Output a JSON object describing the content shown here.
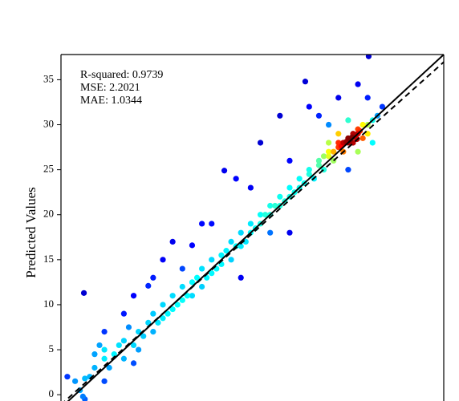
{
  "chart_data": {
    "type": "scatter",
    "y_label": "Predicted Values",
    "annotations": [
      "R-squared: 0.9739",
      "MSE: 2.2021",
      "MAE: 1.0344"
    ],
    "x": [
      0.5,
      1,
      0.8,
      1.5,
      2,
      2,
      2.5,
      3,
      3,
      3.5,
      3,
      1,
      0,
      -0.8,
      4,
      4.5,
      5,
      5,
      5.5,
      6,
      6,
      6.5,
      7,
      6.5,
      7.5,
      8,
      8,
      8.5,
      9,
      9,
      9.5,
      10,
      10,
      10.5,
      11,
      11,
      11.5,
      12,
      12,
      12.5,
      13,
      13,
      13.5,
      14,
      14,
      14.5,
      15,
      15,
      15.5,
      16,
      16,
      16.5,
      17,
      17,
      17.5,
      18,
      18,
      18.5,
      19,
      19,
      19.5,
      20,
      20,
      20.5,
      21,
      21,
      21.5,
      22,
      22,
      22.5,
      23,
      23,
      23.5,
      24,
      24,
      24.5,
      25,
      25,
      25.5,
      25.5,
      26,
      26,
      26.5,
      26.5,
      27,
      27,
      27.5,
      27.5,
      28,
      28,
      28.5,
      28.5,
      29,
      29,
      29.5,
      29.5,
      30,
      30,
      30.5,
      28,
      27,
      26,
      29,
      31,
      30.5,
      0.9,
      7.5,
      12,
      15.3,
      23.6,
      30.1,
      10,
      13,
      16.5,
      19,
      21,
      22,
      24,
      27,
      29,
      30,
      14,
      9,
      6,
      3,
      11,
      18,
      25,
      26,
      31.5,
      20,
      17,
      22,
      28,
      5,
      8,
      28.2,
      28.7,
      27.8,
      28.4,
      29.2,
      27.3,
      28.9
    ],
    "values": [
      0.5,
      1.8,
      -0.2,
      2,
      3,
      4.5,
      5.5,
      4,
      5,
      3,
      1.5,
      -0.5,
      1.5,
      2,
      4.5,
      5.5,
      4,
      6,
      7.5,
      5.5,
      3.5,
      7,
      6.5,
      5,
      8,
      7,
      9,
      8,
      10,
      8.5,
      9,
      11,
      9.5,
      10,
      12,
      10.5,
      11,
      12.5,
      11,
      13,
      14,
      12,
      13,
      15,
      13.5,
      14,
      15.5,
      14.5,
      16,
      17,
      15,
      16.5,
      18,
      16.5,
      17,
      19,
      18,
      18.5,
      20,
      19,
      20,
      21,
      20,
      21,
      22,
      21,
      21.5,
      23,
      22,
      22.5,
      24,
      23,
      23.5,
      24.5,
      25,
      24,
      25.5,
      26,
      25,
      26.5,
      26.5,
      27,
      27,
      26,
      27.5,
      28,
      28,
      27,
      28.5,
      28,
      29,
      28,
      29,
      29.5,
      30,
      28.5,
      30,
      29,
      30.5,
      30.5,
      29,
      28,
      27,
      31,
      28,
      11.3,
      12.1,
      16.6,
      24.9,
      34.8,
      37.6,
      17,
      19,
      24,
      28,
      31,
      26,
      32,
      33,
      34.5,
      33,
      19,
      15,
      11,
      7,
      14,
      23,
      31,
      30,
      32,
      18,
      13,
      18,
      25,
      9,
      13,
      28.3,
      28.9,
      28.1,
      28.6,
      29.3,
      27.6,
      28.4
    ],
    "xlim": [
      -1.45,
      37.8
    ],
    "ylim": [
      -0.7,
      37.8
    ],
    "yticks": [
      0,
      5,
      10,
      15,
      20,
      25,
      30,
      35
    ],
    "reference_line": {
      "slope": 1,
      "intercept": 0,
      "color": "#000000"
    },
    "fit_line": {
      "slope": 0.97,
      "intercept": 0.3,
      "color": "#000000"
    },
    "colormap": "jet"
  }
}
